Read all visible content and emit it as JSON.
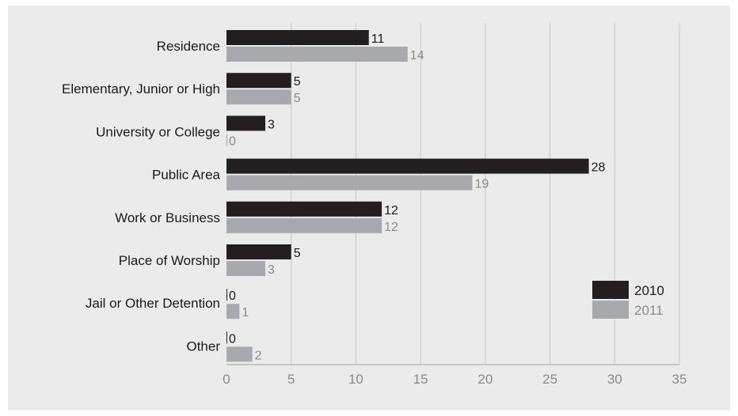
{
  "chart_data": {
    "type": "bar",
    "orientation": "horizontal",
    "title": "",
    "xlabel": "",
    "ylabel": "",
    "categories": [
      "Residence",
      "Elementary, Junior or High",
      "University or College",
      "Public Area",
      "Work or Business",
      "Place of Worship",
      "Jail or Other Detention",
      "Other"
    ],
    "series": [
      {
        "name": "2010",
        "color": "#231f20",
        "values": [
          11,
          5,
          3,
          28,
          12,
          5,
          0,
          0
        ]
      },
      {
        "name": "2011",
        "color": "#a7a9ac",
        "values": [
          14,
          5,
          0,
          19,
          12,
          3,
          1,
          2
        ]
      }
    ],
    "xlim": [
      0,
      35
    ],
    "xticks": [
      0,
      5,
      10,
      15,
      20,
      25,
      30,
      35
    ],
    "grid": true,
    "legend_position": "bottom-right",
    "data_labels": true
  }
}
